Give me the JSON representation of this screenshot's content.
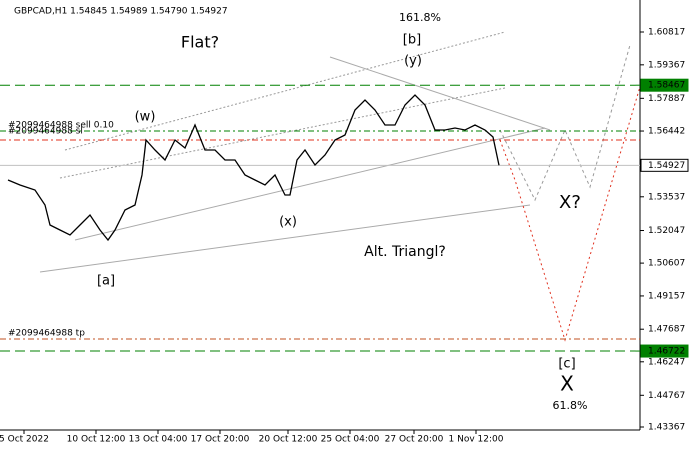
{
  "chart_data": {
    "type": "line",
    "title": "GBPCAD,H1 1.54845 1.54989 1.54790 1.54927",
    "xlim": [
      0,
      160
    ],
    "ylim": [
      1.43234,
      1.62231
    ],
    "xticks": [
      {
        "value": 6,
        "label": "5 Oct 2022"
      },
      {
        "value": 24,
        "label": "10 Oct 12:00"
      },
      {
        "value": 39.5,
        "label": "13 Oct 04:00"
      },
      {
        "value": 55,
        "label": "17 Oct 20:00"
      },
      {
        "value": 72,
        "label": "20 Oct 12:00"
      },
      {
        "value": 87.5,
        "label": "25 Oct 04:00"
      },
      {
        "value": 103.5,
        "label": "27 Oct 20:00"
      },
      {
        "value": 119,
        "label": "1 Nov 12:00"
      }
    ],
    "yticks": [
      1.60817,
      1.59367,
      1.57887,
      1.56442,
      1.53537,
      1.52047,
      1.50607,
      1.49157,
      1.47687,
      1.46247,
      1.44767,
      1.43367
    ],
    "series": [
      {
        "name": "GBPCAD",
        "color": "#000000",
        "x": [
          2,
          5,
          8.75,
          11.25,
          12.5,
          15,
          17.5,
          20,
          22.5,
          25,
          27,
          28.75,
          31.25,
          33.75,
          35.5,
          36.5,
          38.75,
          41.25,
          43.75,
          46.25,
          48.75,
          51.25,
          53.75,
          56.25,
          58.75,
          61.25,
          63.75,
          66.25,
          68.75,
          71.25,
          72.5,
          74.25,
          76.25,
          78.75,
          81.25,
          83.75,
          86.25,
          88.75,
          91.25,
          93.75,
          96.25,
          98.75,
          101.25,
          103.75,
          106.25,
          108.75,
          111.25,
          113.75,
          116.25,
          118.75,
          121.25,
          123.25,
          124.75
        ],
        "values": [
          1.54279,
          1.54058,
          1.53837,
          1.53175,
          1.52291,
          1.5207,
          1.51849,
          1.52291,
          1.52733,
          1.5207,
          1.51629,
          1.5207,
          1.52954,
          1.53175,
          1.545,
          1.56046,
          1.55604,
          1.55163,
          1.56046,
          1.55693,
          1.56709,
          1.55604,
          1.55604,
          1.55163,
          1.55163,
          1.545,
          1.54279,
          1.54058,
          1.545,
          1.53616,
          1.53616,
          1.55163,
          1.55604,
          1.54942,
          1.55384,
          1.56046,
          1.56267,
          1.57372,
          1.57813,
          1.57372,
          1.56709,
          1.56709,
          1.57592,
          1.58034,
          1.57592,
          1.56488,
          1.56488,
          1.56576,
          1.56488,
          1.56709,
          1.56488,
          1.56179,
          1.54927
        ]
      }
    ],
    "levels": [
      {
        "name": "#2099464988 sell 0.10",
        "value": 1.56444,
        "color": "#008000"
      },
      {
        "name": "#2099464988 sl",
        "value": 1.56046,
        "color": "#e0301e"
      },
      {
        "name": "#2099464988 tp",
        "value": 1.47255,
        "color": "#c05020"
      }
    ],
    "price_tags": [
      {
        "value": 1.58467,
        "color": "#008000"
      },
      {
        "value": 1.54927,
        "color": "#ffffff"
      },
      {
        "value": 1.46722,
        "color": "#008000"
      }
    ],
    "annotations": [
      {
        "text": "161.8%",
        "color": "#3b3b9b"
      },
      {
        "text": "Flat?",
        "color": "#2b3b9b"
      },
      {
        "text": "[b]",
        "color": "#2e8b2e"
      },
      {
        "text": "(y)",
        "color": "#2b2b8b"
      },
      {
        "text": "(w)",
        "color": "#2b2b8b"
      },
      {
        "text": "(x)",
        "color": "#2b2b8b"
      },
      {
        "text": "[a]",
        "color": "#2e8b2e"
      },
      {
        "text": "Alt. Triangl?",
        "color": "#8c8c8c"
      },
      {
        "text": "X?",
        "color": "#8c8c8c"
      },
      {
        "text": "[c]",
        "color": "#2e8b2e"
      },
      {
        "text": "X",
        "color": "#8b1a1a"
      },
      {
        "text": "61.8%",
        "color": "#3b3b9b"
      }
    ]
  }
}
